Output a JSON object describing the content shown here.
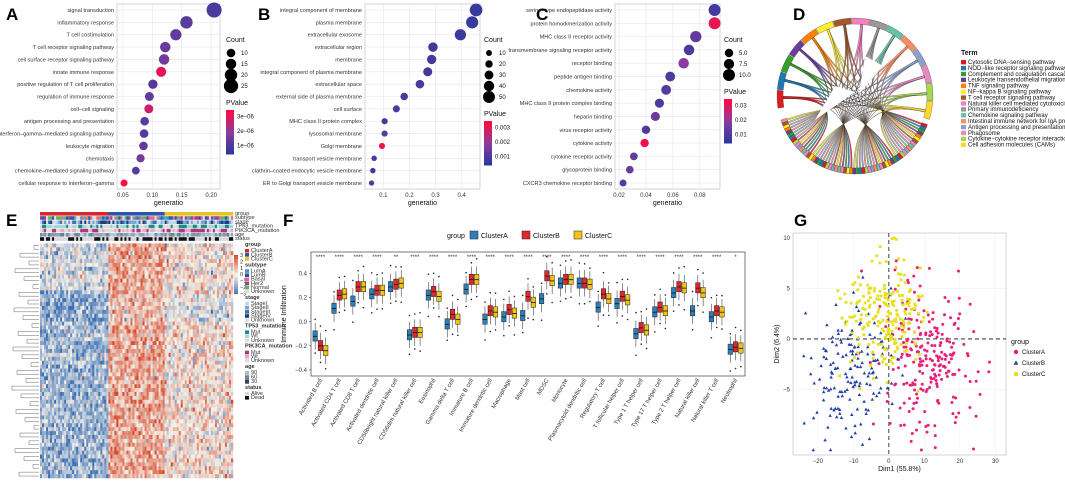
{
  "panels": {
    "A": "A",
    "B": "B",
    "C": "C",
    "D": "D",
    "E": "E",
    "F": "F",
    "G": "G"
  },
  "colors": {
    "pvalue_low": "#2d3a9c",
    "pvalue_mid": "#8e3b9e",
    "pvalue_high": "#ff0a3c",
    "clusterA": "#2e7fb8",
    "clusterB": "#e3262e",
    "clusterC": "#f2c214",
    "scatterA": "#e8207a",
    "scatterB": "#1f3fa8",
    "scatterC": "#e6e01e",
    "heat_low": "#3b6fb5",
    "heat_mid": "#f5f2e8",
    "heat_high": "#d6472a"
  },
  "chart_data": [
    {
      "id": "A",
      "type": "scatter",
      "subtype": "dotplot",
      "title": "",
      "xlabel": "generatio",
      "ylabel": "",
      "xlim": [
        0.04,
        0.215
      ],
      "x_ticks": [
        0.05,
        0.1,
        0.15,
        0.2
      ],
      "x_tick_labels": [
        "0.05",
        "0.10",
        "0.15",
        "0.20"
      ],
      "categories": [
        "signal transduction",
        "inflammatory response",
        "T cell costimulation",
        "T cell receptor signaling pathway",
        "cell surface receptor signaling pathway",
        "innate immune response",
        "positive regulation of T cell proliferation",
        "regulation of immune response",
        "cell–cell signaling",
        "antigen processing and presentation",
        "interferon–gamma–mediated signaling pathway",
        "leukocyte migration",
        "chemotaxis",
        "chemokine–mediated signaling pathway",
        "cellular response to interferon–gamma"
      ],
      "x": [
        0.205,
        0.158,
        0.14,
        0.122,
        0.12,
        0.115,
        0.101,
        0.095,
        0.094,
        0.087,
        0.086,
        0.085,
        0.08,
        0.072,
        0.052
      ],
      "count": [
        27,
        20,
        17,
        15,
        15,
        14,
        12,
        11,
        11,
        10,
        10,
        10,
        9,
        8,
        6
      ],
      "pvalue": [
        1e-06,
        1.3e-06,
        1.5e-06,
        1.6e-06,
        1.7e-06,
        3.6e-06,
        1.2e-06,
        1.4e-06,
        3.2e-06,
        1.3e-06,
        1.2e-06,
        1.4e-06,
        1.8e-06,
        1.3e-06,
        3.8e-06
      ],
      "size_legend_title": "Count",
      "size_legend": [
        10,
        15,
        20,
        25
      ],
      "color_legend_title": "PValue",
      "color_legend_ticks": [
        "3e−06",
        "2e−06",
        "1e−06"
      ],
      "color_range": [
        5e-07,
        4e-06
      ]
    },
    {
      "id": "B",
      "type": "scatter",
      "subtype": "dotplot",
      "title": "",
      "xlabel": "generatio",
      "ylabel": "",
      "xlim": [
        0.03,
        0.47
      ],
      "x_ticks": [
        0.1,
        0.2,
        0.3,
        0.4
      ],
      "x_tick_labels": [
        "0.1",
        "0.2",
        "0.3",
        "0.4"
      ],
      "categories": [
        "integral component of membrane",
        "plasma membrane",
        "extracellular exosome",
        "extracellular region",
        "membrane",
        "integral component of plasma membrane",
        "extracellular space",
        "external side of plasma membrane",
        "cell surface",
        "MHC class II protein complex",
        "lysosomal membrane",
        "Golgi membrane",
        "transport vesicle membrane",
        "clathrin–coated endocytic vesicle membrane",
        "ER to Golgi transport vesicle membrane"
      ],
      "x": [
        0.455,
        0.44,
        0.395,
        0.29,
        0.285,
        0.27,
        0.24,
        0.18,
        0.15,
        0.105,
        0.105,
        0.095,
        0.065,
        0.06,
        0.055
      ],
      "count": [
        55,
        52,
        46,
        34,
        33,
        31,
        28,
        21,
        18,
        12,
        12,
        11,
        7,
        7,
        6
      ],
      "pvalue": [
        0.0002,
        0.0002,
        0.0003,
        0.0003,
        0.0004,
        0.0004,
        0.0005,
        0.0005,
        0.0006,
        0.0004,
        0.0008,
        0.0032,
        0.0005,
        0.0004,
        0.0006
      ],
      "size_legend_title": "Count",
      "size_legend": [
        10,
        20,
        30,
        40,
        50
      ],
      "color_legend_title": "PValue",
      "color_legend_ticks": [
        "0.003",
        "0.002",
        "0.001"
      ],
      "color_range": [
        0.0,
        0.0035
      ]
    },
    {
      "id": "C",
      "type": "scatter",
      "subtype": "dotplot",
      "title": "",
      "xlabel": "generatio",
      "ylabel": "",
      "xlim": [
        0.017,
        0.095
      ],
      "x_ticks": [
        0.02,
        0.04,
        0.06,
        0.08
      ],
      "x_tick_labels": [
        "0.02",
        "0.04",
        "0.06",
        "0.08"
      ],
      "categories": [
        "serine–type endopeptidase activity",
        "protein homodimerization activity",
        "MHC class II receptor activity",
        "transmembrane signaling receptor activity",
        "receptor binding",
        "peptide antigen binding",
        "chemokine activity",
        "MHC class II protein complex binding",
        "heparin binding",
        "virus receptor activity",
        "cytokine activity",
        "cytokine receptor activity",
        "glycoprotein binding",
        "CXCR3 chemokine receptor binding"
      ],
      "x": [
        0.091,
        0.091,
        0.077,
        0.072,
        0.068,
        0.058,
        0.055,
        0.05,
        0.047,
        0.04,
        0.039,
        0.031,
        0.028,
        0.023
      ],
      "count": [
        10,
        10,
        9,
        8,
        8,
        7,
        7,
        6,
        6,
        5,
        5,
        4,
        4,
        3
      ],
      "pvalue": [
        0.004,
        0.033,
        0.01,
        0.006,
        0.018,
        0.006,
        0.008,
        0.006,
        0.012,
        0.007,
        0.035,
        0.01,
        0.011,
        0.008
      ],
      "size_legend_title": "Count",
      "size_legend": [
        "5.0",
        "7.5",
        "10.0"
      ],
      "color_legend_title": "PValue",
      "color_legend_ticks": [
        "0.03",
        "0.02",
        "0.01"
      ],
      "color_range": [
        0.0,
        0.037
      ]
    },
    {
      "id": "D",
      "type": "pie",
      "subtype": "chord",
      "title": "",
      "legend_title": "Term",
      "terms": [
        {
          "name": "Cytosolic DNA−sensing pathway",
          "color": "#e31a1c"
        },
        {
          "name": "NOD−like receptor signaling pathway",
          "color": "#1f78b4"
        },
        {
          "name": "Complement and coagulation cascades",
          "color": "#33a02c"
        },
        {
          "name": "Leukocyte transendothelial migration",
          "color": "#6a3d9a"
        },
        {
          "name": "TNF signaling pathway",
          "color": "#ff7f00"
        },
        {
          "name": "NF−kappa B signaling pathway",
          "color": "#ffed2e"
        },
        {
          "name": "T cell receptor signaling pathway",
          "color": "#a65628"
        },
        {
          "name": "Natural killer cell mediated cytotoxicity",
          "color": "#f781bf"
        },
        {
          "name": "Primary immunodeficiency",
          "color": "#999999"
        },
        {
          "name": "Chemokine signaling pathway",
          "color": "#66c2a5"
        },
        {
          "name": "Intestinal immune network for IgA production",
          "color": "#fc8d62"
        },
        {
          "name": "Antigen processing and presentation",
          "color": "#8da0cb"
        },
        {
          "name": "Phagosome",
          "color": "#e78ac3"
        },
        {
          "name": "Cytokine−cytokine receptor interaction",
          "color": "#a6d854"
        },
        {
          "name": "Cell adhesion molecules (CAMs)",
          "color": "#ffd92f"
        }
      ]
    },
    {
      "id": "E",
      "type": "heatmap",
      "annotation_tracks": [
        "group",
        "subtype",
        "stage",
        "TP53_mutation",
        "PIK3CA_mutation",
        "age",
        "status"
      ],
      "legends": [
        {
          "title": "group",
          "items": [
            "ClusterA",
            "ClusterB",
            "ClusterC"
          ],
          "colors": [
            "#d7262d",
            "#2a55a6",
            "#e8c020"
          ]
        },
        {
          "title": "subtype",
          "items": [
            "LumA",
            "LumB",
            "Basal",
            "Her2",
            "Normal",
            "Unknown"
          ],
          "colors": [
            "#4a8fd0",
            "#1f5aa8",
            "#e06c8a",
            "#a33a9a",
            "#5bb36a",
            "#dddddd"
          ]
        },
        {
          "title": "stage",
          "items": [
            "StageI",
            "StageII",
            "StageIII",
            "StageIV",
            "Unknown"
          ],
          "colors": [
            "#bfd6ee",
            "#7aa5d4",
            "#3f6fae",
            "#1e3e7a",
            "#dddddd"
          ]
        },
        {
          "title": "TP53_mutation",
          "items": [
            "Mut",
            "Wt",
            "Unknown"
          ],
          "colors": [
            "#1a8c8c",
            "#9fd8d8",
            "#dddddd"
          ]
        },
        {
          "title": "PIK3CA_mutation",
          "items": [
            "Mut",
            "Wt",
            "Unknown"
          ],
          "colors": [
            "#b0367a",
            "#e8a6c8",
            "#dddddd"
          ]
        },
        {
          "title": "age",
          "ticks": [
            "90",
            "60",
            "30"
          ]
        },
        {
          "title": "status",
          "items": [
            "Alive",
            "Dead"
          ],
          "colors": [
            "#d9d9d9",
            "#111111"
          ]
        }
      ],
      "value_ticks": [
        "3",
        "2",
        "1",
        "0",
        "−1",
        "−2",
        "−3"
      ]
    },
    {
      "id": "F",
      "type": "bar",
      "subtype": "boxplot",
      "title": "",
      "legend_title": "group",
      "series_names": [
        "ClusterA",
        "ClusterB",
        "ClusterC"
      ],
      "ylabel": "Immune Infiltration",
      "ylim": [
        -0.45,
        0.58
      ],
      "y_ticks": [
        -0.4,
        -0.2,
        0.0,
        0.2,
        0.4
      ],
      "y_tick_labels": [
        "−0.4",
        "−0.2",
        "0.0",
        "0.2",
        "0.4"
      ],
      "categories": [
        "Activated B cell",
        "Activated CD4 T cell",
        "Activated CD8 T cell",
        "Activated dendritic cell",
        "CD56bright natural killer cell",
        "CD56dim natural killer cell",
        "Eosinophil",
        "Gamma delta T cell",
        "Immature B cell",
        "Immature dendritic cell",
        "Macrophage",
        "Mast cell",
        "MDSC",
        "Monocyte",
        "Plasmacytoid dendritic cell",
        "Regulatory T cell",
        "T follicular helper cell",
        "Type 1 T helper cell",
        "Type 17 T helper cell",
        "Type 2 T helper cell",
        "Natural killer cell",
        "Natural killer T cell",
        "Neutrophil"
      ],
      "significance": [
        "****",
        "****",
        "****",
        "****",
        "**",
        "****",
        "****",
        "****",
        "****",
        "****",
        "****",
        "****",
        "****",
        "****",
        "****",
        "****",
        "****",
        "****",
        "****",
        "****",
        "****",
        "****",
        "*"
      ],
      "medians": [
        [
          -0.12,
          0.11,
          0.17,
          0.23,
          0.29,
          -0.11,
          0.22,
          -0.02,
          0.27,
          0.02,
          0.04,
          0.05,
          0.19,
          0.32,
          0.32,
          0.12,
          0.15,
          -0.1,
          0.08,
          0.24,
          0.09,
          0.04,
          -0.23
        ],
        [
          -0.2,
          0.22,
          0.29,
          0.26,
          0.31,
          -0.09,
          0.25,
          0.06,
          0.35,
          0.09,
          0.1,
          0.21,
          0.38,
          0.35,
          0.32,
          0.23,
          0.21,
          -0.05,
          0.12,
          0.29,
          0.28,
          0.09,
          -0.21
        ],
        [
          -0.24,
          0.23,
          0.29,
          0.26,
          0.32,
          -0.09,
          0.21,
          0.02,
          0.35,
          0.08,
          0.07,
          0.16,
          0.34,
          0.35,
          0.31,
          0.19,
          0.18,
          -0.07,
          0.09,
          0.28,
          0.24,
          0.08,
          -0.22
        ]
      ]
    },
    {
      "id": "G",
      "type": "scatter",
      "subtype": "pca",
      "xlabel": "Dim1 (55.8%)",
      "ylabel": "Dim2 (6.4%)",
      "xlim": [
        -27,
        33
      ],
      "ylim": [
        -11.5,
        10.5
      ],
      "x_ticks": [
        -20,
        -10,
        0,
        10,
        20,
        30
      ],
      "x_tick_labels": [
        "−20",
        "−10",
        "0",
        "10",
        "20",
        "30"
      ],
      "y_ticks": [
        -5,
        0,
        5,
        10
      ],
      "y_tick_labels": [
        "−5",
        "0",
        "5",
        "10"
      ],
      "legend_title": "group",
      "series": [
        {
          "name": "ClusterA",
          "shape": "circle",
          "center": [
            10,
            -2
          ],
          "spread": [
            6.5,
            3.5
          ],
          "n": 230
        },
        {
          "name": "ClusterB",
          "shape": "triangle",
          "center": [
            -11,
            -3
          ],
          "spread": [
            6,
            3.3
          ],
          "n": 160
        },
        {
          "name": "ClusterC",
          "shape": "square",
          "center": [
            -1,
            2.5
          ],
          "spread": [
            5.5,
            3
          ],
          "n": 210
        }
      ]
    }
  ]
}
